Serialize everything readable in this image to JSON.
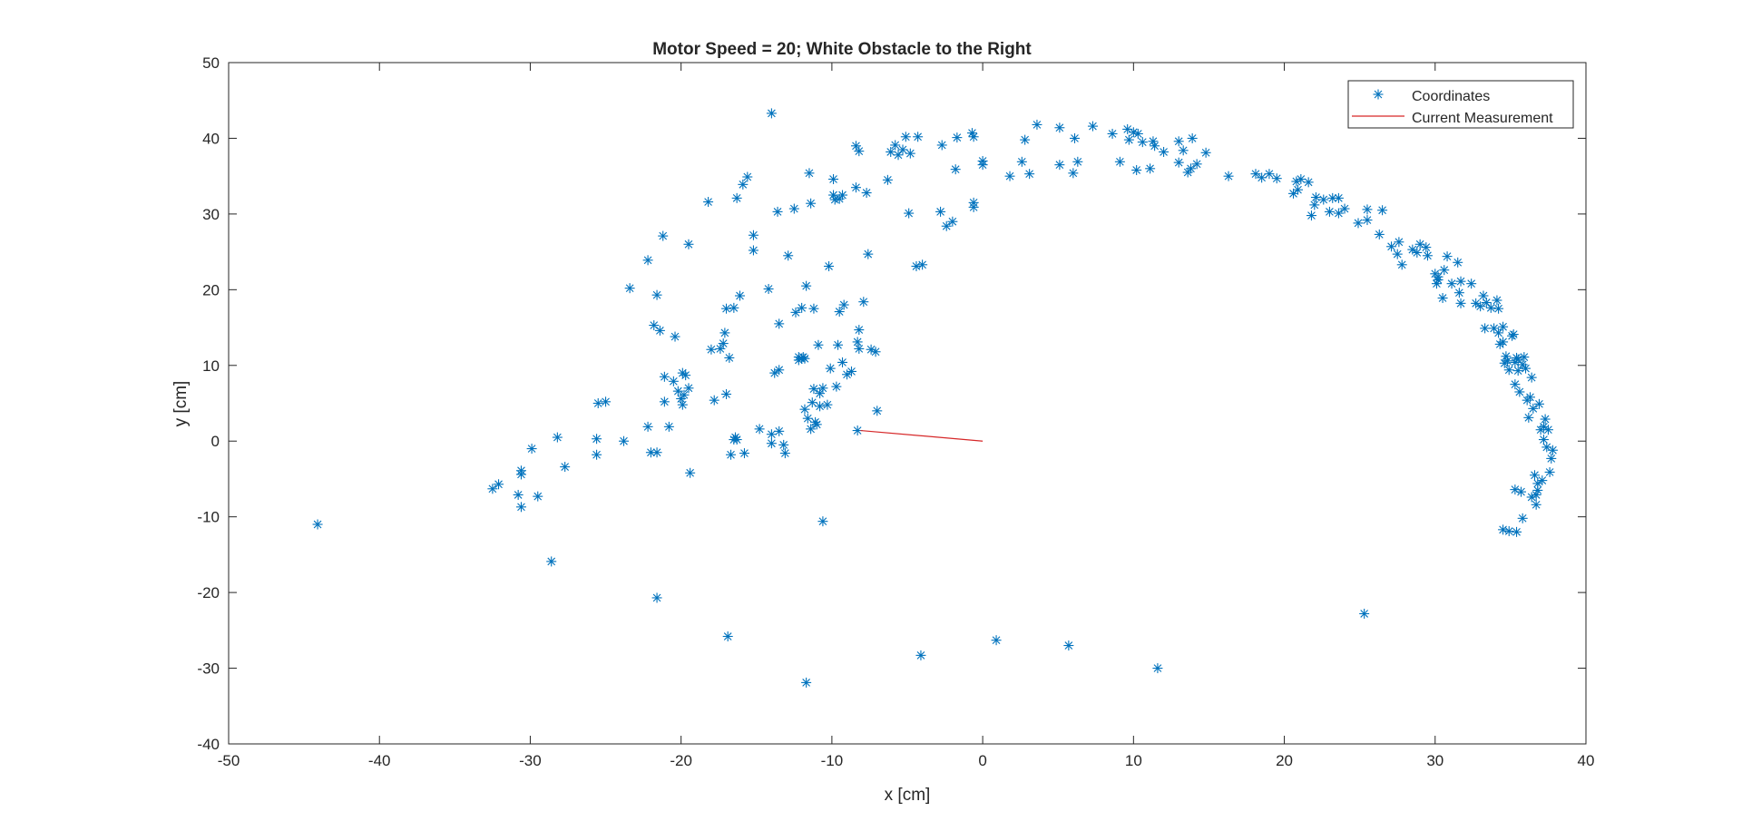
{
  "chart_data": {
    "type": "scatter",
    "title": "Motor Speed = 20; White Obstacle to the Right",
    "xlabel": "x [cm]",
    "ylabel": "y [cm]",
    "xlim": [
      -50,
      40
    ],
    "ylim": [
      -40,
      50
    ],
    "xticks": [
      -50,
      -40,
      -30,
      -20,
      -10,
      0,
      10,
      20,
      30,
      40
    ],
    "yticks": [
      -40,
      -30,
      -20,
      -10,
      0,
      10,
      20,
      30,
      40,
      50
    ],
    "xtick_labels": [
      "-50",
      "-40",
      "-30",
      "-20",
      "-10",
      "0",
      "10",
      "20",
      "30",
      "40"
    ],
    "ytick_labels": [
      "-40",
      "-30",
      "-20",
      "-10",
      "0",
      "10",
      "20",
      "30",
      "40",
      "50"
    ],
    "grid": false,
    "legend_position": "top-right",
    "series": [
      {
        "name": "Coordinates",
        "kind": "scatter",
        "marker": "asterisk",
        "color": "#0072BD",
        "points": [
          [
            -44.1,
            -11.0
          ],
          [
            -32.5,
            -6.3
          ],
          [
            -32.1,
            -5.7
          ],
          [
            -30.8,
            -7.1
          ],
          [
            -30.6,
            -3.9
          ],
          [
            -30.6,
            -4.4
          ],
          [
            -30.6,
            -8.7
          ],
          [
            -29.9,
            -1.0
          ],
          [
            -29.5,
            -7.3
          ],
          [
            -28.6,
            -15.9
          ],
          [
            -28.2,
            0.5
          ],
          [
            -27.7,
            -3.4
          ],
          [
            -25.6,
            0.3
          ],
          [
            -25.6,
            -1.8
          ],
          [
            -25.5,
            5.0
          ],
          [
            -25.0,
            5.2
          ],
          [
            -23.8,
            0.0
          ],
          [
            -23.4,
            20.2
          ],
          [
            -22.2,
            23.9
          ],
          [
            -22.2,
            1.9
          ],
          [
            -22.0,
            -1.5
          ],
          [
            -21.6,
            -1.5
          ],
          [
            -21.8,
            15.3
          ],
          [
            -21.6,
            19.3
          ],
          [
            -21.6,
            -20.7
          ],
          [
            -21.4,
            14.6
          ],
          [
            -21.2,
            27.1
          ],
          [
            -21.1,
            5.2
          ],
          [
            -21.1,
            8.5
          ],
          [
            -20.8,
            1.9
          ],
          [
            -20.5,
            7.9
          ],
          [
            -20.4,
            13.8
          ],
          [
            -20.2,
            6.6
          ],
          [
            -20.0,
            5.6
          ],
          [
            -19.9,
            9.0
          ],
          [
            -19.9,
            4.8
          ],
          [
            -19.8,
            6.1
          ],
          [
            -19.7,
            8.7
          ],
          [
            -19.5,
            7.0
          ],
          [
            -19.5,
            26.0
          ],
          [
            -19.4,
            -4.2
          ],
          [
            -18.2,
            31.6
          ],
          [
            -18.0,
            12.1
          ],
          [
            -17.8,
            5.4
          ],
          [
            -17.4,
            12.2
          ],
          [
            -17.2,
            12.9
          ],
          [
            -17.1,
            14.3
          ],
          [
            -17.0,
            17.5
          ],
          [
            -17.0,
            6.2
          ],
          [
            -16.9,
            -25.8
          ],
          [
            -16.8,
            11.0
          ],
          [
            -16.7,
            -1.8
          ],
          [
            -16.5,
            17.6
          ],
          [
            -16.5,
            0.2
          ],
          [
            -16.4,
            0.5
          ],
          [
            -16.3,
            0.2
          ],
          [
            -16.3,
            32.1
          ],
          [
            -16.1,
            19.2
          ],
          [
            -15.9,
            33.9
          ],
          [
            -15.8,
            -1.6
          ],
          [
            -15.6,
            34.9
          ],
          [
            -15.2,
            27.2
          ],
          [
            -15.2,
            25.2
          ],
          [
            -14.8,
            1.6
          ],
          [
            -14.2,
            20.1
          ],
          [
            -14.0,
            43.3
          ],
          [
            -14.0,
            -0.3
          ],
          [
            -14.0,
            0.9
          ],
          [
            -13.8,
            9.0
          ],
          [
            -13.6,
            30.3
          ],
          [
            -13.5,
            15.5
          ],
          [
            -13.5,
            9.4
          ],
          [
            -13.5,
            1.3
          ],
          [
            -13.2,
            -0.5
          ],
          [
            -13.1,
            -1.6
          ],
          [
            -12.9,
            24.5
          ],
          [
            -12.5,
            30.7
          ],
          [
            -12.4,
            17.0
          ],
          [
            -12.2,
            10.7
          ],
          [
            -12.2,
            11.1
          ],
          [
            -12.0,
            10.9
          ],
          [
            -12.0,
            17.6
          ],
          [
            -11.9,
            11.1
          ],
          [
            -11.8,
            10.9
          ],
          [
            -11.8,
            4.2
          ],
          [
            -11.7,
            -31.9
          ],
          [
            -11.7,
            20.5
          ],
          [
            -11.6,
            3.0
          ],
          [
            -11.5,
            35.4
          ],
          [
            -11.4,
            31.4
          ],
          [
            -11.4,
            1.6
          ],
          [
            -11.3,
            5.1
          ],
          [
            -11.2,
            17.5
          ],
          [
            -11.2,
            6.9
          ],
          [
            -11.1,
            2.5
          ],
          [
            -11.0,
            2.2
          ],
          [
            -10.9,
            12.7
          ],
          [
            -10.8,
            6.3
          ],
          [
            -10.8,
            4.6
          ],
          [
            -10.6,
            7.0
          ],
          [
            -10.6,
            -10.6
          ],
          [
            -10.3,
            4.8
          ],
          [
            -10.2,
            23.1
          ],
          [
            -10.1,
            9.6
          ],
          [
            -9.9,
            34.6
          ],
          [
            -9.9,
            32.5
          ],
          [
            -9.8,
            31.9
          ],
          [
            -9.7,
            7.2
          ],
          [
            -9.6,
            12.7
          ],
          [
            -9.5,
            32.0
          ],
          [
            -9.5,
            17.1
          ],
          [
            -9.3,
            32.5
          ],
          [
            -9.3,
            10.4
          ],
          [
            -9.2,
            18.0
          ],
          [
            -9.0,
            8.8
          ],
          [
            -8.7,
            9.2
          ],
          [
            -8.4,
            39.0
          ],
          [
            -8.4,
            33.5
          ],
          [
            -8.3,
            1.4
          ],
          [
            -8.3,
            13.1
          ],
          [
            -8.2,
            12.2
          ],
          [
            -8.2,
            14.7
          ],
          [
            -8.2,
            38.3
          ],
          [
            -7.9,
            18.4
          ],
          [
            -7.7,
            32.8
          ],
          [
            -7.6,
            24.7
          ],
          [
            -7.4,
            12.1
          ],
          [
            -7.1,
            11.8
          ],
          [
            -7.0,
            4.0
          ],
          [
            -6.3,
            34.5
          ],
          [
            -6.1,
            38.2
          ],
          [
            -5.8,
            39.1
          ],
          [
            -5.6,
            37.8
          ],
          [
            -5.3,
            38.5
          ],
          [
            -5.1,
            40.2
          ],
          [
            -4.9,
            30.1
          ],
          [
            -4.8,
            38.0
          ],
          [
            -4.4,
            23.1
          ],
          [
            -4.3,
            40.2
          ],
          [
            -4.1,
            -28.3
          ],
          [
            -4.0,
            23.3
          ],
          [
            -2.8,
            30.3
          ],
          [
            -2.7,
            39.1
          ],
          [
            -2.4,
            28.4
          ],
          [
            -2.0,
            29.0
          ],
          [
            -1.8,
            35.9
          ],
          [
            -1.7,
            40.1
          ],
          [
            -0.7,
            40.7
          ],
          [
            -0.6,
            31.5
          ],
          [
            -0.6,
            40.2
          ],
          [
            -0.6,
            30.9
          ],
          [
            0.0,
            36.5
          ],
          [
            0.0,
            37.0
          ],
          [
            0.9,
            -26.3
          ],
          [
            1.8,
            35.0
          ],
          [
            2.6,
            36.9
          ],
          [
            2.8,
            39.8
          ],
          [
            3.1,
            35.3
          ],
          [
            3.6,
            41.8
          ],
          [
            5.1,
            41.4
          ],
          [
            5.1,
            36.5
          ],
          [
            5.7,
            -27.0
          ],
          [
            6.0,
            35.4
          ],
          [
            6.1,
            40.0
          ],
          [
            6.3,
            36.9
          ],
          [
            7.3,
            41.6
          ],
          [
            8.6,
            40.6
          ],
          [
            9.1,
            36.9
          ],
          [
            9.6,
            41.2
          ],
          [
            9.7,
            39.8
          ],
          [
            10.0,
            40.8
          ],
          [
            10.2,
            35.8
          ],
          [
            10.3,
            40.6
          ],
          [
            10.6,
            39.5
          ],
          [
            11.1,
            36.0
          ],
          [
            11.3,
            39.6
          ],
          [
            11.4,
            39.0
          ],
          [
            11.6,
            -30.0
          ],
          [
            12.0,
            38.2
          ],
          [
            13.0,
            36.8
          ],
          [
            13.0,
            39.6
          ],
          [
            13.3,
            38.4
          ],
          [
            13.6,
            35.5
          ],
          [
            13.8,
            36.0
          ],
          [
            13.9,
            40.0
          ],
          [
            14.2,
            36.6
          ],
          [
            14.8,
            38.1
          ],
          [
            16.3,
            35.0
          ],
          [
            18.1,
            35.3
          ],
          [
            18.5,
            34.8
          ],
          [
            19.0,
            35.3
          ],
          [
            19.5,
            34.7
          ],
          [
            20.6,
            32.7
          ],
          [
            20.8,
            34.3
          ],
          [
            20.9,
            33.2
          ],
          [
            21.1,
            34.6
          ],
          [
            21.6,
            34.2
          ],
          [
            21.8,
            29.8
          ],
          [
            22.0,
            31.2
          ],
          [
            22.1,
            32.2
          ],
          [
            22.6,
            31.9
          ],
          [
            23.0,
            30.3
          ],
          [
            23.2,
            32.1
          ],
          [
            23.6,
            32.1
          ],
          [
            23.6,
            30.1
          ],
          [
            24.0,
            30.7
          ],
          [
            24.9,
            28.8
          ],
          [
            25.3,
            -22.8
          ],
          [
            25.5,
            29.2
          ],
          [
            25.5,
            30.6
          ],
          [
            26.3,
            27.3
          ],
          [
            26.5,
            30.5
          ],
          [
            27.1,
            25.7
          ],
          [
            27.5,
            24.7
          ],
          [
            27.6,
            26.3
          ],
          [
            27.8,
            23.3
          ],
          [
            28.5,
            25.3
          ],
          [
            28.8,
            24.9
          ],
          [
            29.0,
            26.0
          ],
          [
            29.4,
            25.6
          ],
          [
            29.5,
            24.5
          ],
          [
            30.0,
            22.1
          ],
          [
            30.1,
            20.8
          ],
          [
            30.2,
            21.3
          ],
          [
            30.2,
            21.7
          ],
          [
            30.5,
            18.9
          ],
          [
            30.6,
            22.6
          ],
          [
            30.8,
            24.4
          ],
          [
            31.1,
            20.8
          ],
          [
            31.5,
            23.6
          ],
          [
            31.6,
            19.6
          ],
          [
            31.7,
            21.1
          ],
          [
            31.7,
            18.2
          ],
          [
            32.4,
            20.8
          ],
          [
            32.7,
            18.2
          ],
          [
            33.0,
            17.8
          ],
          [
            33.2,
            19.2
          ],
          [
            33.3,
            14.9
          ],
          [
            33.4,
            18.3
          ],
          [
            33.7,
            17.6
          ],
          [
            33.9,
            14.9
          ],
          [
            34.1,
            18.6
          ],
          [
            34.2,
            17.5
          ],
          [
            34.2,
            14.3
          ],
          [
            34.3,
            12.8
          ],
          [
            34.5,
            15.1
          ],
          [
            34.5,
            13.1
          ],
          [
            34.6,
            10.3
          ],
          [
            34.7,
            11.2
          ],
          [
            34.8,
            10.6
          ],
          [
            34.9,
            9.4
          ],
          [
            35.1,
            13.9
          ],
          [
            35.2,
            14.1
          ],
          [
            35.3,
            10.4
          ],
          [
            35.3,
            7.5
          ],
          [
            35.4,
            11.0
          ],
          [
            35.5,
            10.8
          ],
          [
            35.5,
            9.3
          ],
          [
            35.6,
            6.5
          ],
          [
            35.8,
            10.1
          ],
          [
            35.8,
            -10.2
          ],
          [
            35.9,
            11.1
          ],
          [
            36.0,
            9.6
          ],
          [
            36.1,
            5.4
          ],
          [
            36.2,
            3.1
          ],
          [
            36.3,
            5.8
          ],
          [
            36.4,
            8.4
          ],
          [
            36.5,
            4.3
          ],
          [
            36.6,
            -4.5
          ],
          [
            36.7,
            -7.1
          ],
          [
            36.7,
            -8.4
          ],
          [
            36.8,
            -5.6
          ],
          [
            36.9,
            4.9
          ],
          [
            37.0,
            1.5
          ],
          [
            37.1,
            -5.2
          ],
          [
            37.2,
            1.9
          ],
          [
            37.2,
            0.2
          ],
          [
            37.3,
            2.9
          ],
          [
            37.4,
            -0.8
          ],
          [
            37.5,
            1.5
          ],
          [
            37.6,
            -4.1
          ],
          [
            37.7,
            -2.3
          ],
          [
            37.8,
            -1.2
          ],
          [
            35.3,
            -6.4
          ],
          [
            34.5,
            -11.7
          ],
          [
            34.9,
            -11.9
          ],
          [
            35.4,
            -12.0
          ],
          [
            36.4,
            -7.4
          ],
          [
            36.8,
            -6.5
          ],
          [
            35.7,
            -6.7
          ]
        ]
      },
      {
        "name": "Current Measurement",
        "kind": "line",
        "color": "#D62728",
        "points": [
          [
            -8.1,
            1.4
          ],
          [
            0.0,
            0.0
          ]
        ]
      }
    ]
  }
}
